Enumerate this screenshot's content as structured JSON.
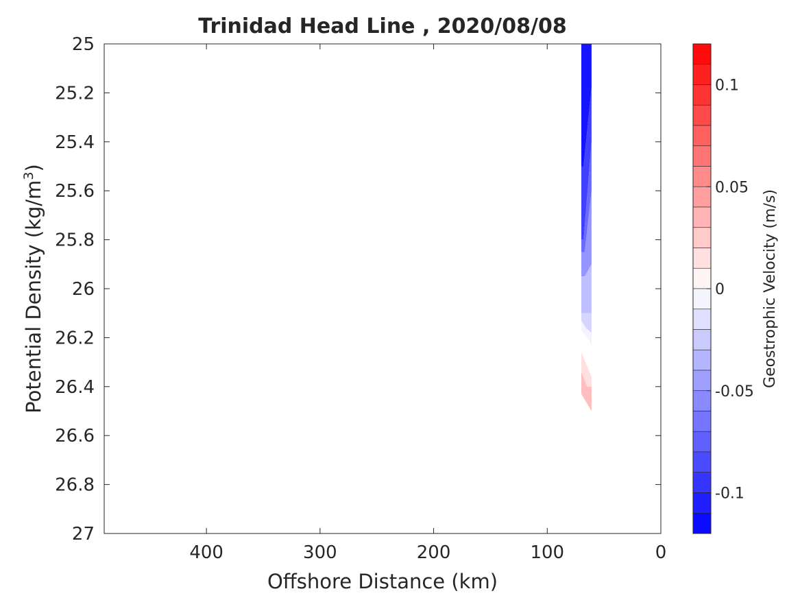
{
  "chart_data": {
    "type": "heatmap",
    "title": "Trinidad Head Line , 2020/08/08",
    "xlabel": "Offshore Distance (km)",
    "ylabel_main": "Potential Density (kg/m",
    "ylabel_sup": "3",
    "ylabel_close": ")",
    "xlim": [
      490,
      0
    ],
    "x_reversed": true,
    "ylim": [
      25,
      27
    ],
    "y_reversed": true,
    "x_ticks": [
      400,
      300,
      200,
      100,
      0
    ],
    "y_ticks": [
      25,
      25.2,
      25.4,
      25.6,
      25.8,
      26,
      26.2,
      26.4,
      26.6,
      26.8,
      27
    ],
    "x_tick_labels": [
      "400",
      "300",
      "200",
      "100",
      "0"
    ],
    "y_tick_labels": [
      "25",
      "25.2",
      "25.4",
      "25.6",
      "25.8",
      "26",
      "26.2",
      "26.4",
      "26.6",
      "26.8",
      "27"
    ],
    "grid": false,
    "colorbar": {
      "label": "Geostrophic Velocity (m/s)",
      "clim": [
        -0.12,
        0.12
      ],
      "levels": 24,
      "ticks": [
        0.1,
        0.05,
        0,
        -0.05,
        -0.1
      ],
      "tick_labels": [
        "0.1",
        "0.05",
        "0",
        "-0.05",
        "-0.1"
      ],
      "colormap": "blue-white-red",
      "neg_color": "#0000ff",
      "mid_color": "#ffffff",
      "pos_color": "#ff0000"
    },
    "regions": [
      {
        "velocity": -0.11,
        "polygon": [
          [
            70,
            25.0
          ],
          [
            61,
            25.0
          ],
          [
            61,
            25.18
          ],
          [
            68,
            25.5
          ],
          [
            70,
            25.5
          ]
        ]
      },
      {
        "velocity": -0.09,
        "polygon": [
          [
            61,
            25.18
          ],
          [
            61,
            25.4
          ],
          [
            68,
            25.8
          ],
          [
            70,
            25.8
          ],
          [
            70,
            25.5
          ],
          [
            68,
            25.5
          ]
        ]
      },
      {
        "velocity": -0.07,
        "polygon": [
          [
            61,
            25.4
          ],
          [
            61,
            25.6
          ],
          [
            67,
            25.85
          ],
          [
            70,
            25.85
          ],
          [
            70,
            25.8
          ],
          [
            68,
            25.8
          ]
        ]
      },
      {
        "velocity": -0.05,
        "polygon": [
          [
            61,
            25.6
          ],
          [
            61,
            25.9
          ],
          [
            67,
            25.95
          ],
          [
            70,
            25.95
          ],
          [
            70,
            25.85
          ],
          [
            67,
            25.85
          ]
        ]
      },
      {
        "velocity": -0.03,
        "polygon": [
          [
            61,
            25.9
          ],
          [
            61,
            26.1
          ],
          [
            70,
            26.1
          ],
          [
            70,
            25.95
          ],
          [
            67,
            25.95
          ]
        ]
      },
      {
        "velocity": -0.02,
        "polygon": [
          [
            61,
            26.1
          ],
          [
            61,
            26.23
          ],
          [
            64,
            26.2
          ],
          [
            70,
            26.17
          ],
          [
            70,
            26.1
          ]
        ]
      },
      {
        "velocity": -0.005,
        "polygon": [
          [
            61,
            26.23
          ],
          [
            64,
            26.2
          ],
          [
            70,
            26.17
          ],
          [
            70,
            26.13
          ],
          [
            66,
            26.16
          ],
          [
            61,
            26.18
          ]
        ]
      },
      {
        "velocity": 0.015,
        "polygon": [
          [
            70,
            26.26
          ],
          [
            70,
            26.36
          ],
          [
            65,
            26.4
          ],
          [
            61,
            26.4
          ],
          [
            61,
            26.36
          ]
        ]
      },
      {
        "velocity": 0.03,
        "polygon": [
          [
            70,
            26.34
          ],
          [
            70,
            26.43
          ],
          [
            61,
            26.5
          ],
          [
            61,
            26.4
          ],
          [
            65,
            26.4
          ]
        ]
      }
    ]
  }
}
